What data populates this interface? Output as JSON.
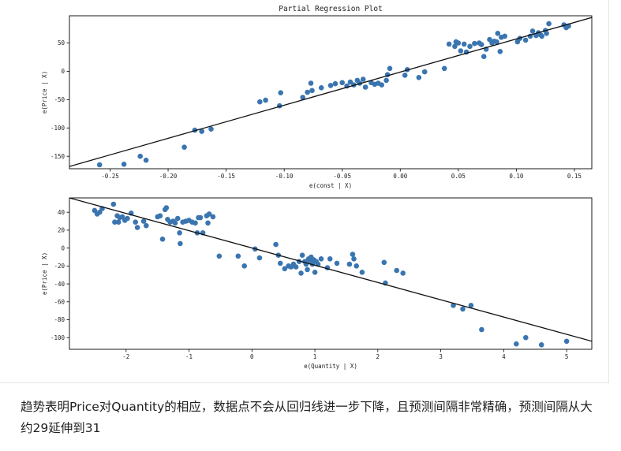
{
  "chart_data": [
    {
      "type": "scatter",
      "title": "Partial Regression Plot",
      "xlabel": "e(const | X)",
      "ylabel": "e(Price | X)",
      "xlim": [
        -0.285,
        0.165
      ],
      "ylim": [
        -172,
        98
      ],
      "xticks": [
        -0.25,
        -0.2,
        -0.15,
        -0.1,
        -0.05,
        0.0,
        0.05,
        0.1,
        0.15
      ],
      "xtick_labels": [
        "-0.25",
        "-0.20",
        "-0.15",
        "-0.10",
        "-0.05",
        "0.00",
        "0.05",
        "0.10",
        "0.15"
      ],
      "yticks": [
        -150,
        -100,
        -50,
        0,
        50
      ],
      "ytick_labels": [
        "-150",
        "-100",
        "-50",
        "0",
        "50"
      ],
      "grid": false,
      "point_color": "#3a75b0",
      "line_color": "#111111",
      "fit_line": {
        "x": [
          -0.285,
          0.165
        ],
        "y": [
          -168,
          95
        ]
      },
      "points": [
        [
          -0.259,
          -165
        ],
        [
          -0.238,
          -164
        ],
        [
          -0.224,
          -150
        ],
        [
          -0.219,
          -157
        ],
        [
          -0.186,
          -134
        ],
        [
          -0.177,
          -104
        ],
        [
          -0.171,
          -106
        ],
        [
          -0.163,
          -102
        ],
        [
          -0.121,
          -54
        ],
        [
          -0.116,
          -51
        ],
        [
          -0.104,
          -61
        ],
        [
          -0.103,
          -38
        ],
        [
          -0.084,
          -46
        ],
        [
          -0.08,
          -37
        ],
        [
          -0.077,
          -21
        ],
        [
          -0.076,
          -34
        ],
        [
          -0.068,
          -29
        ],
        [
          -0.06,
          -25
        ],
        [
          -0.056,
          -22
        ],
        [
          -0.05,
          -20
        ],
        [
          -0.046,
          -26
        ],
        [
          -0.043,
          -19
        ],
        [
          -0.04,
          -24
        ],
        [
          -0.037,
          -16
        ],
        [
          -0.035,
          -21
        ],
        [
          -0.032,
          -14
        ],
        [
          -0.03,
          -28
        ],
        [
          -0.025,
          -20
        ],
        [
          -0.022,
          -23
        ],
        [
          -0.019,
          -21
        ],
        [
          -0.016,
          -24
        ],
        [
          -0.012,
          -16
        ],
        [
          -0.011,
          -6
        ],
        [
          -0.009,
          5
        ],
        [
          0.004,
          -7
        ],
        [
          0.006,
          3
        ],
        [
          0.016,
          -11
        ],
        [
          0.021,
          -1
        ],
        [
          0.038,
          5
        ],
        [
          0.042,
          48
        ],
        [
          0.047,
          44
        ],
        [
          0.048,
          52
        ],
        [
          0.05,
          50
        ],
        [
          0.052,
          36
        ],
        [
          0.055,
          48
        ],
        [
          0.057,
          34
        ],
        [
          0.06,
          44
        ],
        [
          0.064,
          49
        ],
        [
          0.068,
          50
        ],
        [
          0.07,
          47
        ],
        [
          0.072,
          26
        ],
        [
          0.074,
          39
        ],
        [
          0.077,
          56
        ],
        [
          0.079,
          50
        ],
        [
          0.081,
          53
        ],
        [
          0.083,
          52
        ],
        [
          0.084,
          67
        ],
        [
          0.086,
          35
        ],
        [
          0.087,
          60
        ],
        [
          0.09,
          62
        ],
        [
          0.101,
          52
        ],
        [
          0.103,
          58
        ],
        [
          0.108,
          55
        ],
        [
          0.112,
          62
        ],
        [
          0.114,
          71
        ],
        [
          0.117,
          63
        ],
        [
          0.119,
          68
        ],
        [
          0.121,
          64
        ],
        [
          0.122,
          62
        ],
        [
          0.125,
          72
        ],
        [
          0.126,
          67
        ],
        [
          0.128,
          84
        ],
        [
          0.141,
          82
        ],
        [
          0.143,
          77
        ],
        [
          0.145,
          80
        ]
      ]
    },
    {
      "type": "scatter",
      "title": "",
      "xlabel": "e(Quantity | X)",
      "ylabel": "e(Price | X)",
      "xlim": [
        -2.9,
        5.4
      ],
      "ylim": [
        -113,
        56
      ],
      "xticks": [
        -2,
        -1,
        0,
        1,
        2,
        3,
        4,
        5
      ],
      "xtick_labels": [
        "-2",
        "-1",
        "0",
        "1",
        "2",
        "3",
        "4",
        "5"
      ],
      "yticks": [
        -100,
        -80,
        -60,
        -40,
        -20,
        0,
        20,
        40
      ],
      "ytick_labels": [
        "-100",
        "-80",
        "-60",
        "-40",
        "-20",
        "0",
        "20",
        "40"
      ],
      "grid": false,
      "point_color": "#3a75b0",
      "line_color": "#111111",
      "fit_line": {
        "x": [
          -2.9,
          5.4
        ],
        "y": [
          56,
          -104
        ]
      },
      "points": [
        [
          -2.5,
          42
        ],
        [
          -2.46,
          38
        ],
        [
          -2.42,
          40
        ],
        [
          -2.38,
          44
        ],
        [
          -2.2,
          49
        ],
        [
          -2.18,
          29
        ],
        [
          -2.14,
          36
        ],
        [
          -2.12,
          29
        ],
        [
          -2.1,
          34
        ],
        [
          -2.06,
          35
        ],
        [
          -2.02,
          31
        ],
        [
          -1.98,
          33
        ],
        [
          -1.92,
          39
        ],
        [
          -1.85,
          29
        ],
        [
          -1.82,
          23
        ],
        [
          -1.72,
          30
        ],
        [
          -1.68,
          25
        ],
        [
          -1.5,
          35
        ],
        [
          -1.46,
          36
        ],
        [
          -1.42,
          10
        ],
        [
          -1.38,
          43
        ],
        [
          -1.36,
          45
        ],
        [
          -1.34,
          32
        ],
        [
          -1.3,
          29
        ],
        [
          -1.25,
          30
        ],
        [
          -1.22,
          28
        ],
        [
          -1.18,
          33
        ],
        [
          -1.15,
          17
        ],
        [
          -1.14,
          5
        ],
        [
          -1.1,
          29
        ],
        [
          -1.05,
          30
        ],
        [
          -1.0,
          31
        ],
        [
          -0.95,
          29
        ],
        [
          -0.9,
          28
        ],
        [
          -0.87,
          17
        ],
        [
          -0.85,
          34
        ],
        [
          -0.82,
          34
        ],
        [
          -0.78,
          17
        ],
        [
          -0.72,
          36
        ],
        [
          -0.7,
          28
        ],
        [
          -0.68,
          38
        ],
        [
          -0.62,
          35
        ],
        [
          -0.52,
          -9
        ],
        [
          -0.22,
          -9
        ],
        [
          -0.12,
          -20
        ],
        [
          0.05,
          -1
        ],
        [
          0.12,
          -11
        ],
        [
          0.38,
          4
        ],
        [
          0.42,
          -8
        ],
        [
          0.45,
          -17
        ],
        [
          0.52,
          -23
        ],
        [
          0.58,
          -20
        ],
        [
          0.62,
          -21
        ],
        [
          0.66,
          -18
        ],
        [
          0.7,
          -21
        ],
        [
          0.75,
          -15
        ],
        [
          0.78,
          -28
        ],
        [
          0.8,
          -8
        ],
        [
          0.84,
          -15
        ],
        [
          0.86,
          -18
        ],
        [
          0.88,
          -24
        ],
        [
          0.9,
          -12
        ],
        [
          0.92,
          -14
        ],
        [
          0.94,
          -10
        ],
        [
          0.96,
          -18
        ],
        [
          0.98,
          -13
        ],
        [
          1.0,
          -27
        ],
        [
          1.02,
          -15
        ],
        [
          1.05,
          -18
        ],
        [
          1.1,
          -12
        ],
        [
          1.2,
          -22
        ],
        [
          1.24,
          -12
        ],
        [
          1.35,
          -17
        ],
        [
          1.55,
          -18
        ],
        [
          1.6,
          -7
        ],
        [
          1.62,
          -12
        ],
        [
          1.66,
          -20
        ],
        [
          1.75,
          -27
        ],
        [
          2.1,
          -16
        ],
        [
          2.12,
          -39
        ],
        [
          2.3,
          -25
        ],
        [
          2.4,
          -28
        ],
        [
          3.2,
          -64
        ],
        [
          3.35,
          -68
        ],
        [
          3.48,
          -64
        ],
        [
          3.65,
          -91
        ],
        [
          4.2,
          -107
        ],
        [
          4.35,
          -100
        ],
        [
          4.6,
          -108
        ],
        [
          5.0,
          -104
        ]
      ]
    }
  ],
  "caption": "趋势表明Price对Quantity的相应，数据点不会从回归线进一步下降，且预测间隔非常精确，预测间隔从大约29延伸到31"
}
